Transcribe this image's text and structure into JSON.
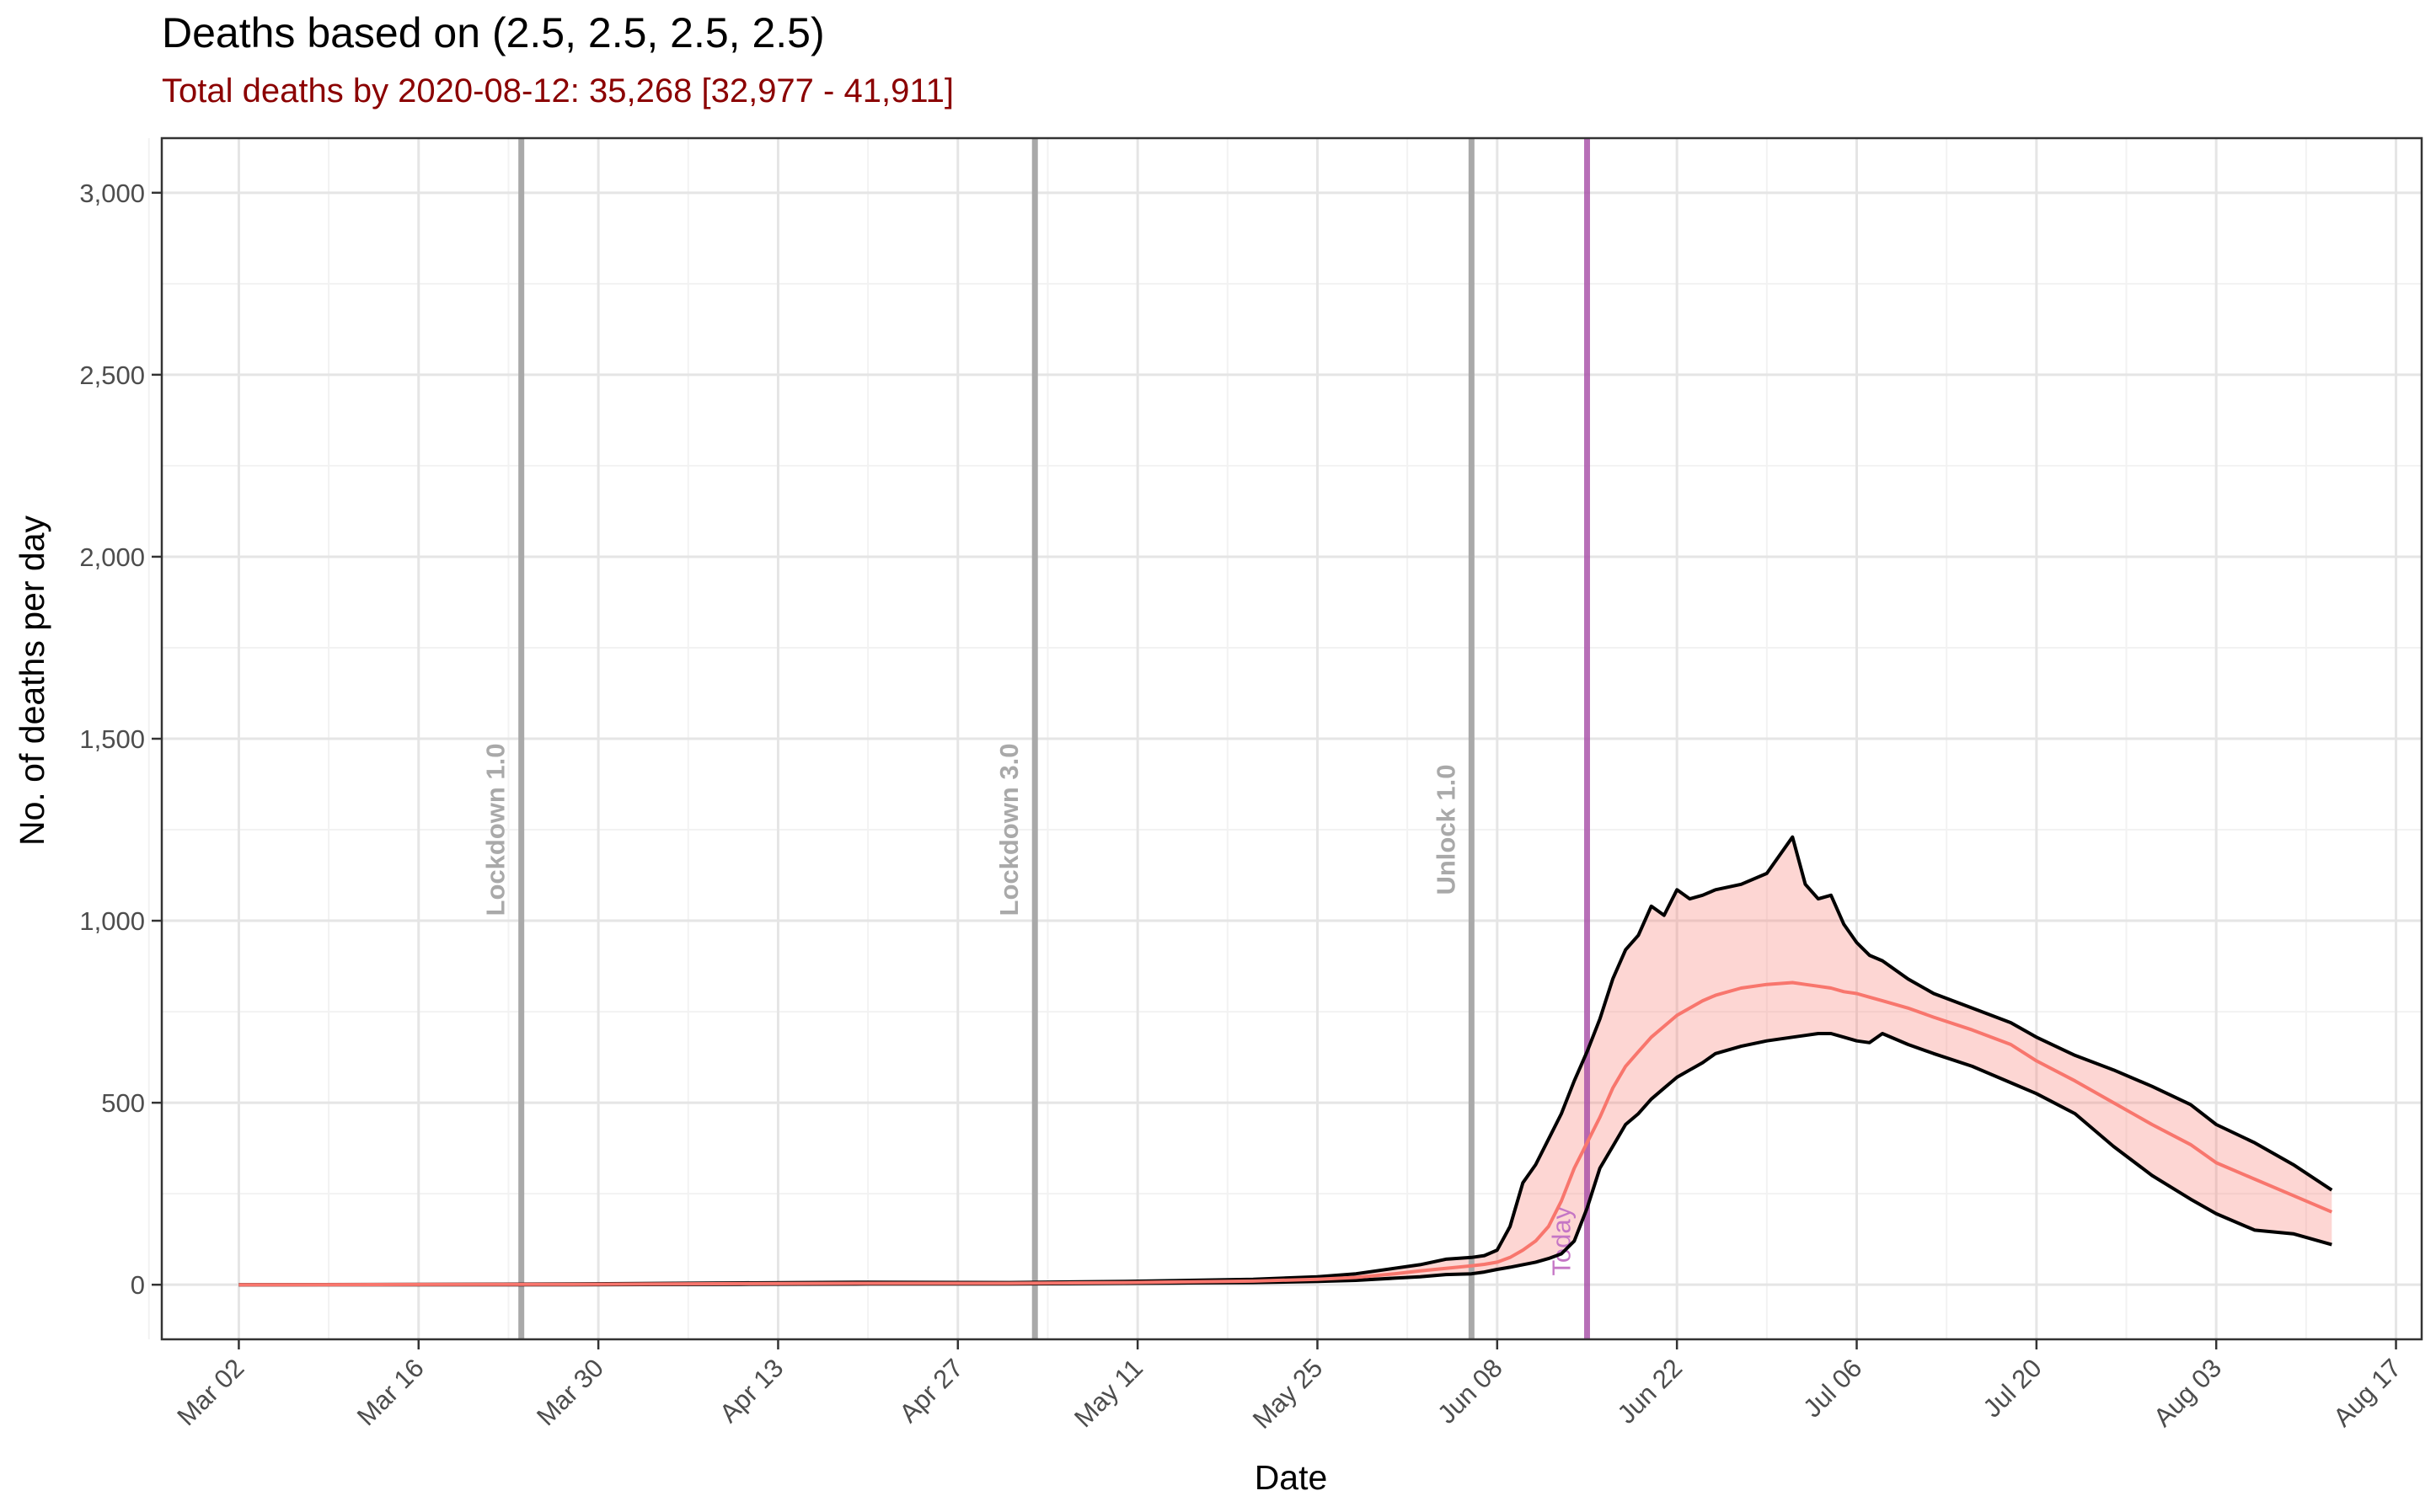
{
  "title": "Deaths based on (2.5, 2.5, 2.5, 2.5)",
  "subtitle": "Total deaths by 2020-08-12: 35,268 [32,977 - 41,911]",
  "chart_data": {
    "type": "area",
    "title": "Deaths based on (2.5, 2.5, 2.5, 2.5)",
    "subtitle": "Total deaths by 2020-08-12: 35,268 [32,977 - 41,911]",
    "xlabel": "Date",
    "ylabel": "No. of deaths per day",
    "xlim": [
      "2020-02-25",
      "2020-08-19"
    ],
    "ylim": [
      -150,
      3150
    ],
    "grid": true,
    "x_ticks": [
      "2020-03-02",
      "2020-03-16",
      "2020-03-30",
      "2020-04-13",
      "2020-04-27",
      "2020-05-11",
      "2020-05-25",
      "2020-06-08",
      "2020-06-22",
      "2020-07-06",
      "2020-07-20",
      "2020-08-03",
      "2020-08-17"
    ],
    "x_tick_labels": [
      "Mar 02",
      "Mar 16",
      "Mar 30",
      "Apr 13",
      "Apr 27",
      "May 11",
      "May 25",
      "Jun 08",
      "Jun 22",
      "Jul 06",
      "Jul 20",
      "Aug 03",
      "Aug 17"
    ],
    "y_ticks": [
      0,
      500,
      1000,
      1500,
      2000,
      2500,
      3000
    ],
    "y_tick_labels": [
      "0",
      "500",
      "1,000",
      "1,500",
      "2,000",
      "2,500",
      "3,000"
    ],
    "colors": {
      "band": "#f8766d",
      "median": "#f8766d",
      "bounds": "#000000",
      "events": "#a9a9a9",
      "today": "#a64ca6",
      "subtitle": "#8b0000"
    },
    "events": [
      {
        "date": "2020-03-24",
        "label": "Lockdown 1.0"
      },
      {
        "date": "2020-05-03",
        "label": "Lockdown 3.0"
      },
      {
        "date": "2020-06-06",
        "label": "Unlock 1.0"
      }
    ],
    "today": {
      "date": "2020-06-15",
      "label": "Today"
    },
    "series": [
      {
        "name": "upper",
        "x": [
          "2020-03-02",
          "2020-03-28",
          "2020-04-10",
          "2020-04-20",
          "2020-05-01",
          "2020-05-10",
          "2020-05-15",
          "2020-05-20",
          "2020-05-25",
          "2020-05-28",
          "2020-05-31",
          "2020-06-02",
          "2020-06-04",
          "2020-06-06",
          "2020-06-07",
          "2020-06-08",
          "2020-06-09",
          "2020-06-10",
          "2020-06-11",
          "2020-06-12",
          "2020-06-13",
          "2020-06-14",
          "2020-06-15",
          "2020-06-16",
          "2020-06-17",
          "2020-06-18",
          "2020-06-19",
          "2020-06-20",
          "2020-06-21",
          "2020-06-22",
          "2020-06-23",
          "2020-06-24",
          "2020-06-25",
          "2020-06-27",
          "2020-06-29",
          "2020-07-01",
          "2020-07-02",
          "2020-07-03",
          "2020-07-04",
          "2020-07-05",
          "2020-07-06",
          "2020-07-07",
          "2020-07-08",
          "2020-07-10",
          "2020-07-12",
          "2020-07-15",
          "2020-07-18",
          "2020-07-20",
          "2020-07-23",
          "2020-07-26",
          "2020-07-29",
          "2020-08-01",
          "2020-08-03",
          "2020-08-06",
          "2020-08-09",
          "2020-08-12"
        ],
        "values": [
          0,
          2,
          5,
          7,
          6,
          9,
          12,
          15,
          22,
          30,
          45,
          55,
          70,
          75,
          80,
          95,
          160,
          280,
          330,
          400,
          470,
          560,
          640,
          730,
          840,
          920,
          960,
          1040,
          1015,
          1085,
          1060,
          1070,
          1085,
          1100,
          1130,
          1230,
          1100,
          1060,
          1070,
          990,
          940,
          905,
          890,
          840,
          800,
          760,
          720,
          680,
          630,
          590,
          545,
          495,
          440,
          390,
          330,
          260
        ]
      },
      {
        "name": "median",
        "x": [
          "2020-03-02",
          "2020-03-28",
          "2020-04-10",
          "2020-04-20",
          "2020-05-01",
          "2020-05-10",
          "2020-05-15",
          "2020-05-20",
          "2020-05-25",
          "2020-05-28",
          "2020-05-31",
          "2020-06-02",
          "2020-06-04",
          "2020-06-06",
          "2020-06-07",
          "2020-06-08",
          "2020-06-09",
          "2020-06-10",
          "2020-06-11",
          "2020-06-12",
          "2020-06-13",
          "2020-06-14",
          "2020-06-15",
          "2020-06-16",
          "2020-06-17",
          "2020-06-18",
          "2020-06-19",
          "2020-06-20",
          "2020-06-21",
          "2020-06-22",
          "2020-06-23",
          "2020-06-24",
          "2020-06-25",
          "2020-06-27",
          "2020-06-29",
          "2020-07-01",
          "2020-07-02",
          "2020-07-03",
          "2020-07-04",
          "2020-07-05",
          "2020-07-06",
          "2020-07-07",
          "2020-07-08",
          "2020-07-10",
          "2020-07-12",
          "2020-07-15",
          "2020-07-18",
          "2020-07-20",
          "2020-07-23",
          "2020-07-26",
          "2020-07-29",
          "2020-08-01",
          "2020-08-03",
          "2020-08-06",
          "2020-08-09",
          "2020-08-12"
        ],
        "values": [
          0,
          1,
          3,
          4,
          4,
          6,
          8,
          10,
          15,
          20,
          30,
          38,
          45,
          52,
          56,
          62,
          75,
          95,
          120,
          160,
          230,
          320,
          390,
          460,
          540,
          600,
          640,
          680,
          710,
          740,
          760,
          780,
          795,
          815,
          825,
          830,
          825,
          820,
          815,
          805,
          800,
          790,
          780,
          760,
          735,
          700,
          660,
          615,
          560,
          500,
          440,
          385,
          335,
          290,
          245,
          200
        ]
      },
      {
        "name": "lower",
        "x": [
          "2020-03-02",
          "2020-03-28",
          "2020-04-10",
          "2020-04-20",
          "2020-05-01",
          "2020-05-10",
          "2020-05-15",
          "2020-05-20",
          "2020-05-25",
          "2020-05-28",
          "2020-05-31",
          "2020-06-02",
          "2020-06-04",
          "2020-06-06",
          "2020-06-07",
          "2020-06-08",
          "2020-06-09",
          "2020-06-10",
          "2020-06-11",
          "2020-06-12",
          "2020-06-13",
          "2020-06-14",
          "2020-06-15",
          "2020-06-16",
          "2020-06-17",
          "2020-06-18",
          "2020-06-19",
          "2020-06-20",
          "2020-06-21",
          "2020-06-22",
          "2020-06-23",
          "2020-06-24",
          "2020-06-25",
          "2020-06-27",
          "2020-06-29",
          "2020-07-01",
          "2020-07-02",
          "2020-07-03",
          "2020-07-04",
          "2020-07-05",
          "2020-07-06",
          "2020-07-07",
          "2020-07-08",
          "2020-07-10",
          "2020-07-12",
          "2020-07-15",
          "2020-07-18",
          "2020-07-20",
          "2020-07-23",
          "2020-07-26",
          "2020-07-29",
          "2020-08-01",
          "2020-08-03",
          "2020-08-06",
          "2020-08-09",
          "2020-08-12"
        ],
        "values": [
          0,
          0,
          1,
          2,
          2,
          4,
          5,
          6,
          9,
          12,
          18,
          22,
          28,
          30,
          35,
          42,
          48,
          55,
          62,
          72,
          85,
          120,
          210,
          320,
          380,
          440,
          470,
          510,
          540,
          570,
          590,
          610,
          635,
          655,
          670,
          680,
          685,
          690,
          690,
          680,
          670,
          665,
          690,
          660,
          635,
          600,
          555,
          525,
          470,
          380,
          300,
          235,
          195,
          150,
          140,
          110
        ]
      }
    ]
  }
}
